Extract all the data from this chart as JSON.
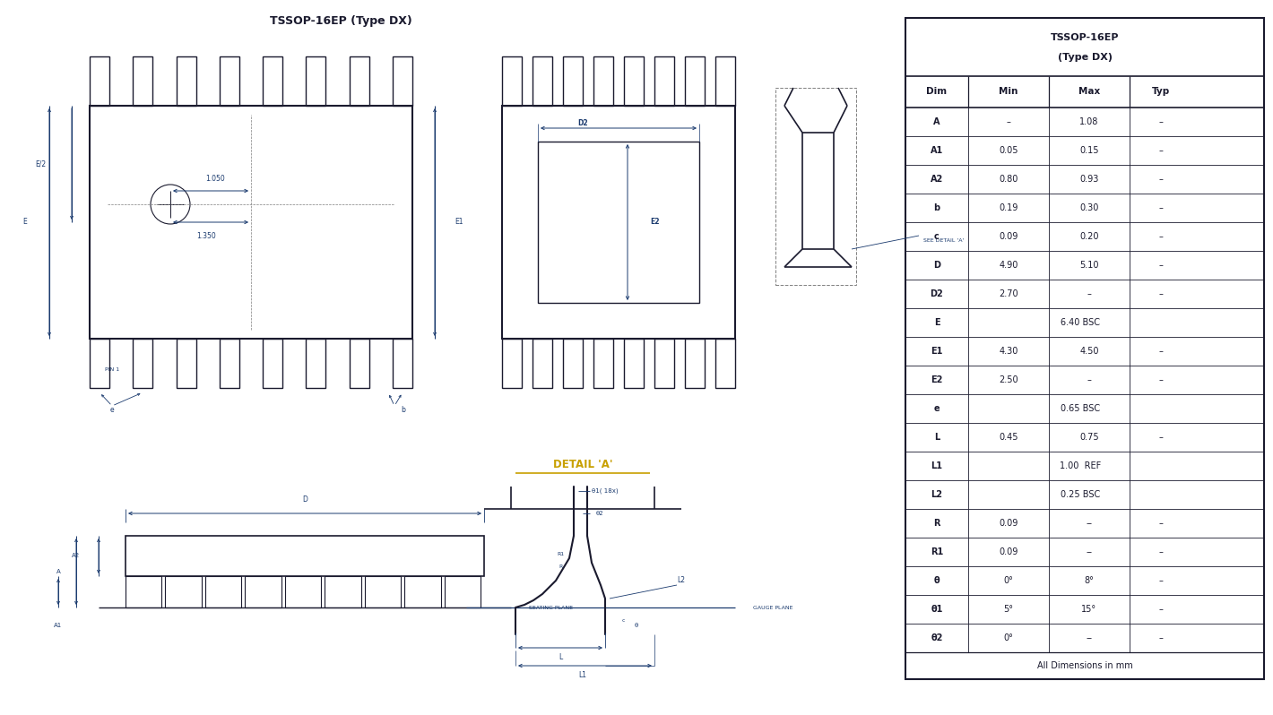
{
  "title": "TSSOP-16EP (Type DX)",
  "table_header1": "TSSOP-16EP",
  "table_header2": "(Type DX)",
  "table_cols": [
    "Dim",
    "Min",
    "Max",
    "Typ"
  ],
  "table_rows": [
    [
      "A",
      "–",
      "1.08",
      "–"
    ],
    [
      "A1",
      "0.05",
      "0.15",
      "–"
    ],
    [
      "A2",
      "0.80",
      "0.93",
      "–"
    ],
    [
      "b",
      "0.19",
      "0.30",
      "–"
    ],
    [
      "c",
      "0.09",
      "0.20",
      "–"
    ],
    [
      "D",
      "4.90",
      "5.10",
      "–"
    ],
    [
      "D2",
      "2.70",
      "–",
      "–"
    ],
    [
      "E",
      "",
      "6.40 BSC",
      ""
    ],
    [
      "E1",
      "4.30",
      "4.50",
      "–"
    ],
    [
      "E2",
      "2.50",
      "–",
      "–"
    ],
    [
      "e",
      "",
      "0.65 BSC",
      ""
    ],
    [
      "L",
      "0.45",
      "0.75",
      "–"
    ],
    [
      "L1",
      "",
      "1.00  REF",
      ""
    ],
    [
      "L2",
      "",
      "0.25 BSC",
      ""
    ],
    [
      "R",
      "0.09",
      "--",
      "–"
    ],
    [
      "R1",
      "0.09",
      "--",
      "–"
    ],
    [
      "θ",
      "0°",
      "8°",
      "–"
    ],
    [
      "θ1",
      "5°",
      "15°",
      "–"
    ],
    [
      "θ2",
      "0°",
      "--",
      "–"
    ]
  ],
  "table_footer": "All Dimensions in mm",
  "line_color": "#1a1a2e",
  "dim_color": "#1a3a6e",
  "label_color": "#c8a000",
  "bg_color": "#ffffff"
}
